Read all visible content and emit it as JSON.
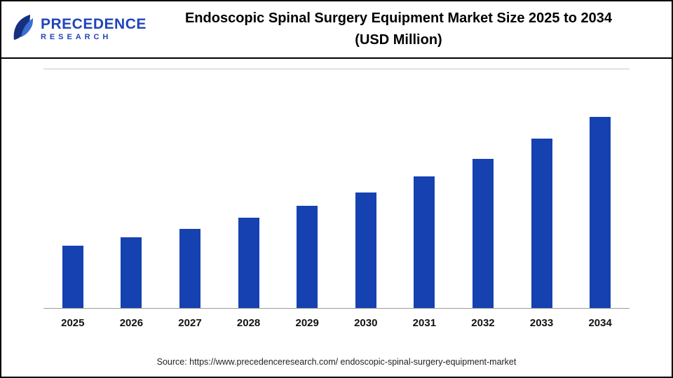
{
  "logo": {
    "name": "Precedence Research",
    "line1": "PRECEDENCE",
    "line2": "RESEARCH"
  },
  "header": {
    "title_line1": "Endoscopic Spinal Surgery Equipment Market Size 2025 to 2034",
    "title_line2": "(USD Million)"
  },
  "source": {
    "text": "Source: https://www.precedenceresearch.com/ endoscopic-spinal-surgery-equipment-market"
  },
  "chart_data": {
    "type": "bar",
    "title": "Endoscopic Spinal Surgery Equipment Market Size 2025 to 2034 (USD Million)",
    "xlabel": "",
    "ylabel": "",
    "categories": [
      "2025",
      "2026",
      "2027",
      "2028",
      "2029",
      "2030",
      "2031",
      "2032",
      "2033",
      "2034"
    ],
    "values": [
      90,
      102,
      114,
      130,
      147,
      166,
      189,
      214,
      243,
      275
    ],
    "ylim": [
      0,
      343
    ],
    "bar_color": "#1641b0",
    "grid": false,
    "legend": "none",
    "value_labels_shown": false,
    "axis_tick_labels_shown": false
  }
}
